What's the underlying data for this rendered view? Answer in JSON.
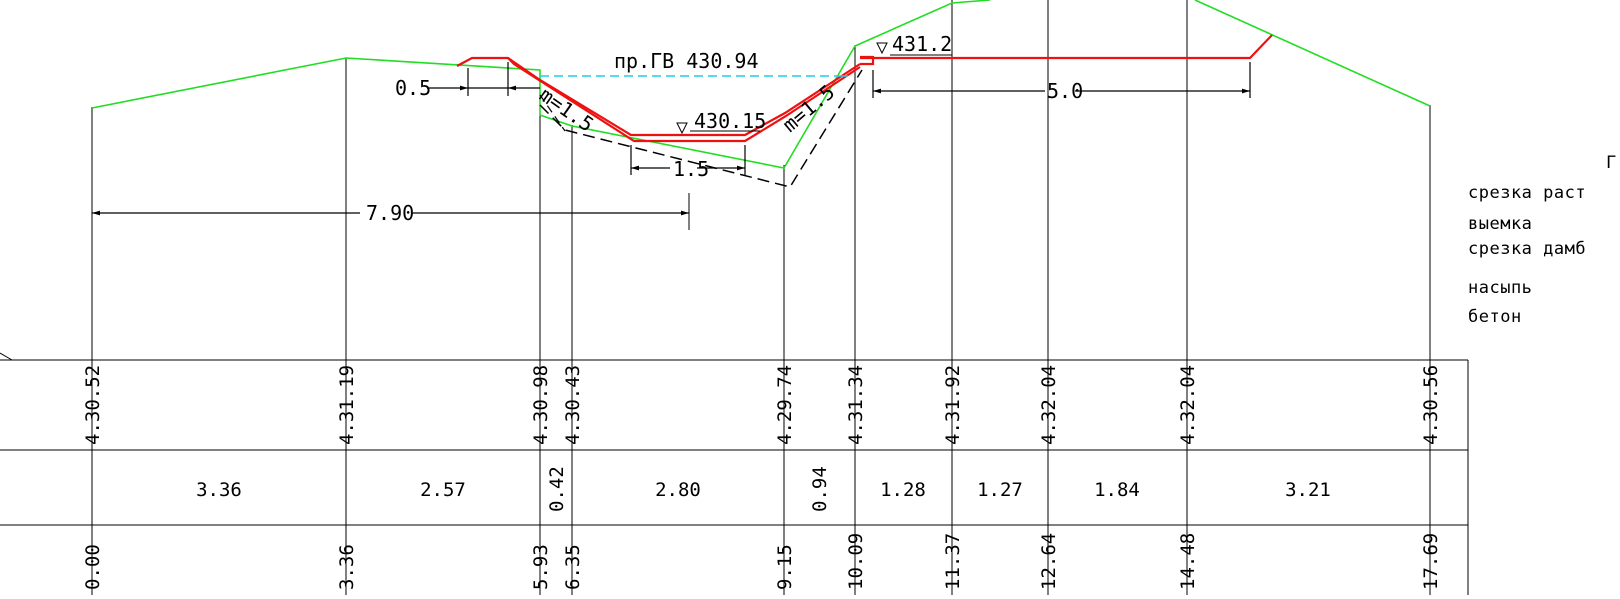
{
  "water_level_label": "пр.ГВ 430.94",
  "mark_top": "431.2",
  "mark_bottom": "430.15",
  "slope_left": "m=1.5",
  "slope_right": "m=1.5",
  "dim_0_5": "0.5",
  "dim_1_5": "1.5",
  "dim_5_0": "5.0",
  "dim_7_90": "7.90",
  "legend": {
    "title_fragment": "Г",
    "items": [
      "срезка раст",
      "выемка",
      "срезка дамб",
      "насыпь",
      "бетон"
    ]
  },
  "table": {
    "elevations": [
      "4.30.52",
      "4.31.19",
      "4.30.98",
      "4.30.43",
      "4.29.74",
      "4.31.34",
      "4.31.92",
      "4.32.04",
      "4.32.04",
      "4.30.56"
    ],
    "distances": [
      "3.36",
      "2.57",
      "0.42",
      "2.80",
      "0.94",
      "1.28",
      "1.27",
      "1.84",
      "3.21"
    ],
    "stations": [
      "0.00",
      "3.36",
      "5.93",
      "6.35",
      "9.15",
      "10.09",
      "11.37",
      "12.64",
      "14.48",
      "17.69"
    ]
  },
  "colors": {
    "ground": "#22dd22",
    "design": "#ee1111",
    "water": "#22ccee",
    "lines": "#000000"
  }
}
